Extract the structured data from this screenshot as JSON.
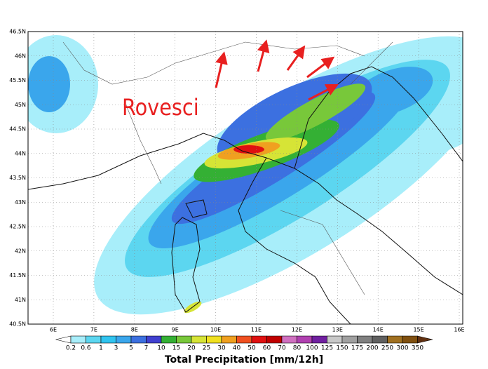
{
  "annotation": "Rovesci",
  "lat_labels": [
    "46.5N",
    "46N",
    "45.5N",
    "45N",
    "44.5N",
    "44N",
    "43.5N",
    "43N",
    "42.5N",
    "42N",
    "41.5N",
    "41N",
    "40.5N"
  ],
  "lon_labels": [
    "6E",
    "7E",
    "8E",
    "9E",
    "10E",
    "11E",
    "12E",
    "13E",
    "14E",
    "15E",
    "16E"
  ],
  "colorbar": {
    "title": "Total Precipitation [mm/12h]",
    "labels": [
      "0.2",
      "0.6",
      "1",
      "3",
      "5",
      "7",
      "10",
      "15",
      "20",
      "25",
      "30",
      "40",
      "50",
      "60",
      "70",
      "80",
      "100",
      "125",
      "150",
      "175",
      "200",
      "250",
      "300",
      "350"
    ],
    "colors": [
      "#ffffff",
      "#a8eefa",
      "#5cd6f0",
      "#30c4f0",
      "#3aa6ec",
      "#3c70e0",
      "#4040d0",
      "#34b034",
      "#78c83a",
      "#d6e436",
      "#f0e020",
      "#f0a020",
      "#f05020",
      "#e01010",
      "#c00000",
      "#d070c0",
      "#b040b0",
      "#7020a0",
      "#c8c8c8",
      "#a0a0a0",
      "#808080",
      "#606060",
      "#a07020",
      "#805010",
      "#603010"
    ]
  }
}
